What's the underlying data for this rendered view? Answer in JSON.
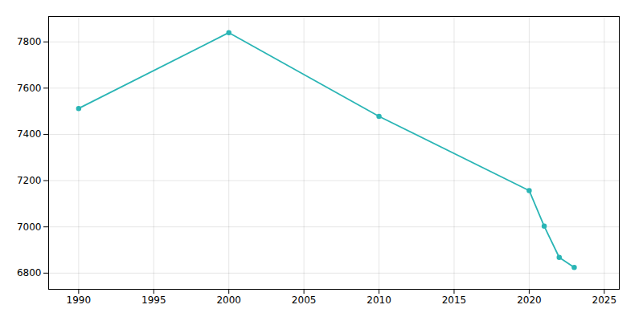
{
  "chart_data": {
    "type": "line",
    "x": [
      1990,
      2000,
      2010,
      2020,
      2021,
      2022,
      2023
    ],
    "values": [
      7512,
      7840,
      7478,
      7157,
      7003,
      6868,
      6825
    ],
    "color": "#2ab5b5",
    "marker": "circle",
    "xlim": [
      1988,
      2026
    ],
    "ylim": [
      6730,
      7910
    ],
    "xticks": [
      1990,
      1995,
      2000,
      2005,
      2010,
      2015,
      2020,
      2025
    ],
    "yticks": [
      6800,
      7000,
      7200,
      7400,
      7600,
      7800
    ],
    "grid": true
  }
}
